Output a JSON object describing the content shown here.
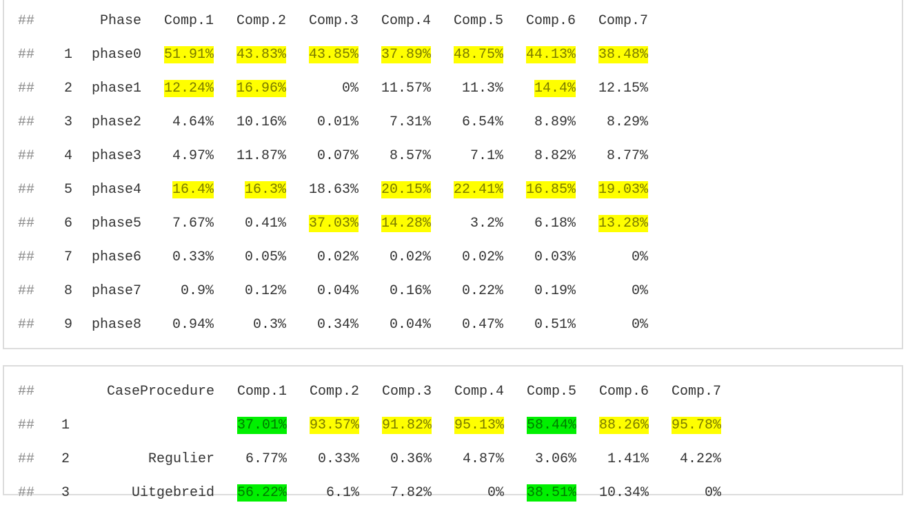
{
  "colors": {
    "highlight_yellow": "#ffff00",
    "highlight_green": "#00f000",
    "text": "#333333",
    "comment": "#888888"
  },
  "phase_table": {
    "prefix": "##",
    "headers": [
      "Phase",
      "Comp.1",
      "Comp.2",
      "Comp.3",
      "Comp.4",
      "Comp.5",
      "Comp.6",
      "Comp.7"
    ],
    "rows": [
      {
        "index": "1",
        "label": "phase0",
        "values": [
          "51.91%",
          "43.83%",
          "43.85%",
          "37.89%",
          "48.75%",
          "44.13%",
          "38.48%"
        ],
        "highlight": [
          "yellow",
          "yellow",
          "yellow",
          "yellow",
          "yellow",
          "yellow",
          "yellow"
        ]
      },
      {
        "index": "2",
        "label": "phase1",
        "values": [
          "12.24%",
          "16.96%",
          "0%",
          "11.57%",
          "11.3%",
          "14.4%",
          "12.15%"
        ],
        "highlight": [
          "yellow",
          "yellow",
          "",
          "",
          "",
          "yellow",
          ""
        ]
      },
      {
        "index": "3",
        "label": "phase2",
        "values": [
          "4.64%",
          "10.16%",
          "0.01%",
          "7.31%",
          "6.54%",
          "8.89%",
          "8.29%"
        ],
        "highlight": [
          "",
          "",
          "",
          "",
          "",
          "",
          ""
        ]
      },
      {
        "index": "4",
        "label": "phase3",
        "values": [
          "4.97%",
          "11.87%",
          "0.07%",
          "8.57%",
          "7.1%",
          "8.82%",
          "8.77%"
        ],
        "highlight": [
          "",
          "",
          "",
          "",
          "",
          "",
          ""
        ]
      },
      {
        "index": "5",
        "label": "phase4",
        "values": [
          "16.4%",
          "16.3%",
          "18.63%",
          "20.15%",
          "22.41%",
          "16.85%",
          "19.03%"
        ],
        "highlight": [
          "yellow",
          "yellow",
          "",
          "yellow",
          "yellow",
          "yellow",
          "yellow"
        ]
      },
      {
        "index": "6",
        "label": "phase5",
        "values": [
          "7.67%",
          "0.41%",
          "37.03%",
          "14.28%",
          "3.2%",
          "6.18%",
          "13.28%"
        ],
        "highlight": [
          "",
          "",
          "yellow",
          "yellow",
          "",
          "",
          "yellow"
        ]
      },
      {
        "index": "7",
        "label": "phase6",
        "values": [
          "0.33%",
          "0.05%",
          "0.02%",
          "0.02%",
          "0.02%",
          "0.03%",
          "0%"
        ],
        "highlight": [
          "",
          "",
          "",
          "",
          "",
          "",
          ""
        ]
      },
      {
        "index": "8",
        "label": "phase7",
        "values": [
          "0.9%",
          "0.12%",
          "0.04%",
          "0.16%",
          "0.22%",
          "0.19%",
          "0%"
        ],
        "highlight": [
          "",
          "",
          "",
          "",
          "",
          "",
          ""
        ]
      },
      {
        "index": "9",
        "label": "phase8",
        "values": [
          "0.94%",
          "0.3%",
          "0.34%",
          "0.04%",
          "0.47%",
          "0.51%",
          "0%"
        ],
        "highlight": [
          "",
          "",
          "",
          "",
          "",
          "",
          ""
        ]
      }
    ]
  },
  "procedure_table": {
    "prefix": "##",
    "headers": [
      "CaseProcedure",
      "Comp.1",
      "Comp.2",
      "Comp.3",
      "Comp.4",
      "Comp.5",
      "Comp.6",
      "Comp.7"
    ],
    "rows": [
      {
        "index": "1",
        "label": "",
        "values": [
          "37.01%",
          "93.57%",
          "91.82%",
          "95.13%",
          "58.44%",
          "88.26%",
          "95.78%"
        ],
        "highlight": [
          "green",
          "yellow",
          "yellow",
          "yellow",
          "green",
          "yellow",
          "yellow"
        ]
      },
      {
        "index": "2",
        "label": "Regulier",
        "values": [
          "6.77%",
          "0.33%",
          "0.36%",
          "4.87%",
          "3.06%",
          "1.41%",
          "4.22%"
        ],
        "highlight": [
          "",
          "",
          "",
          "",
          "",
          "",
          ""
        ]
      },
      {
        "index": "3",
        "label": "Uitgebreid",
        "values": [
          "56.22%",
          "6.1%",
          "7.82%",
          "0%",
          "38.51%",
          "10.34%",
          "0%"
        ],
        "highlight": [
          "green",
          "",
          "",
          "",
          "green",
          "",
          ""
        ]
      }
    ]
  }
}
